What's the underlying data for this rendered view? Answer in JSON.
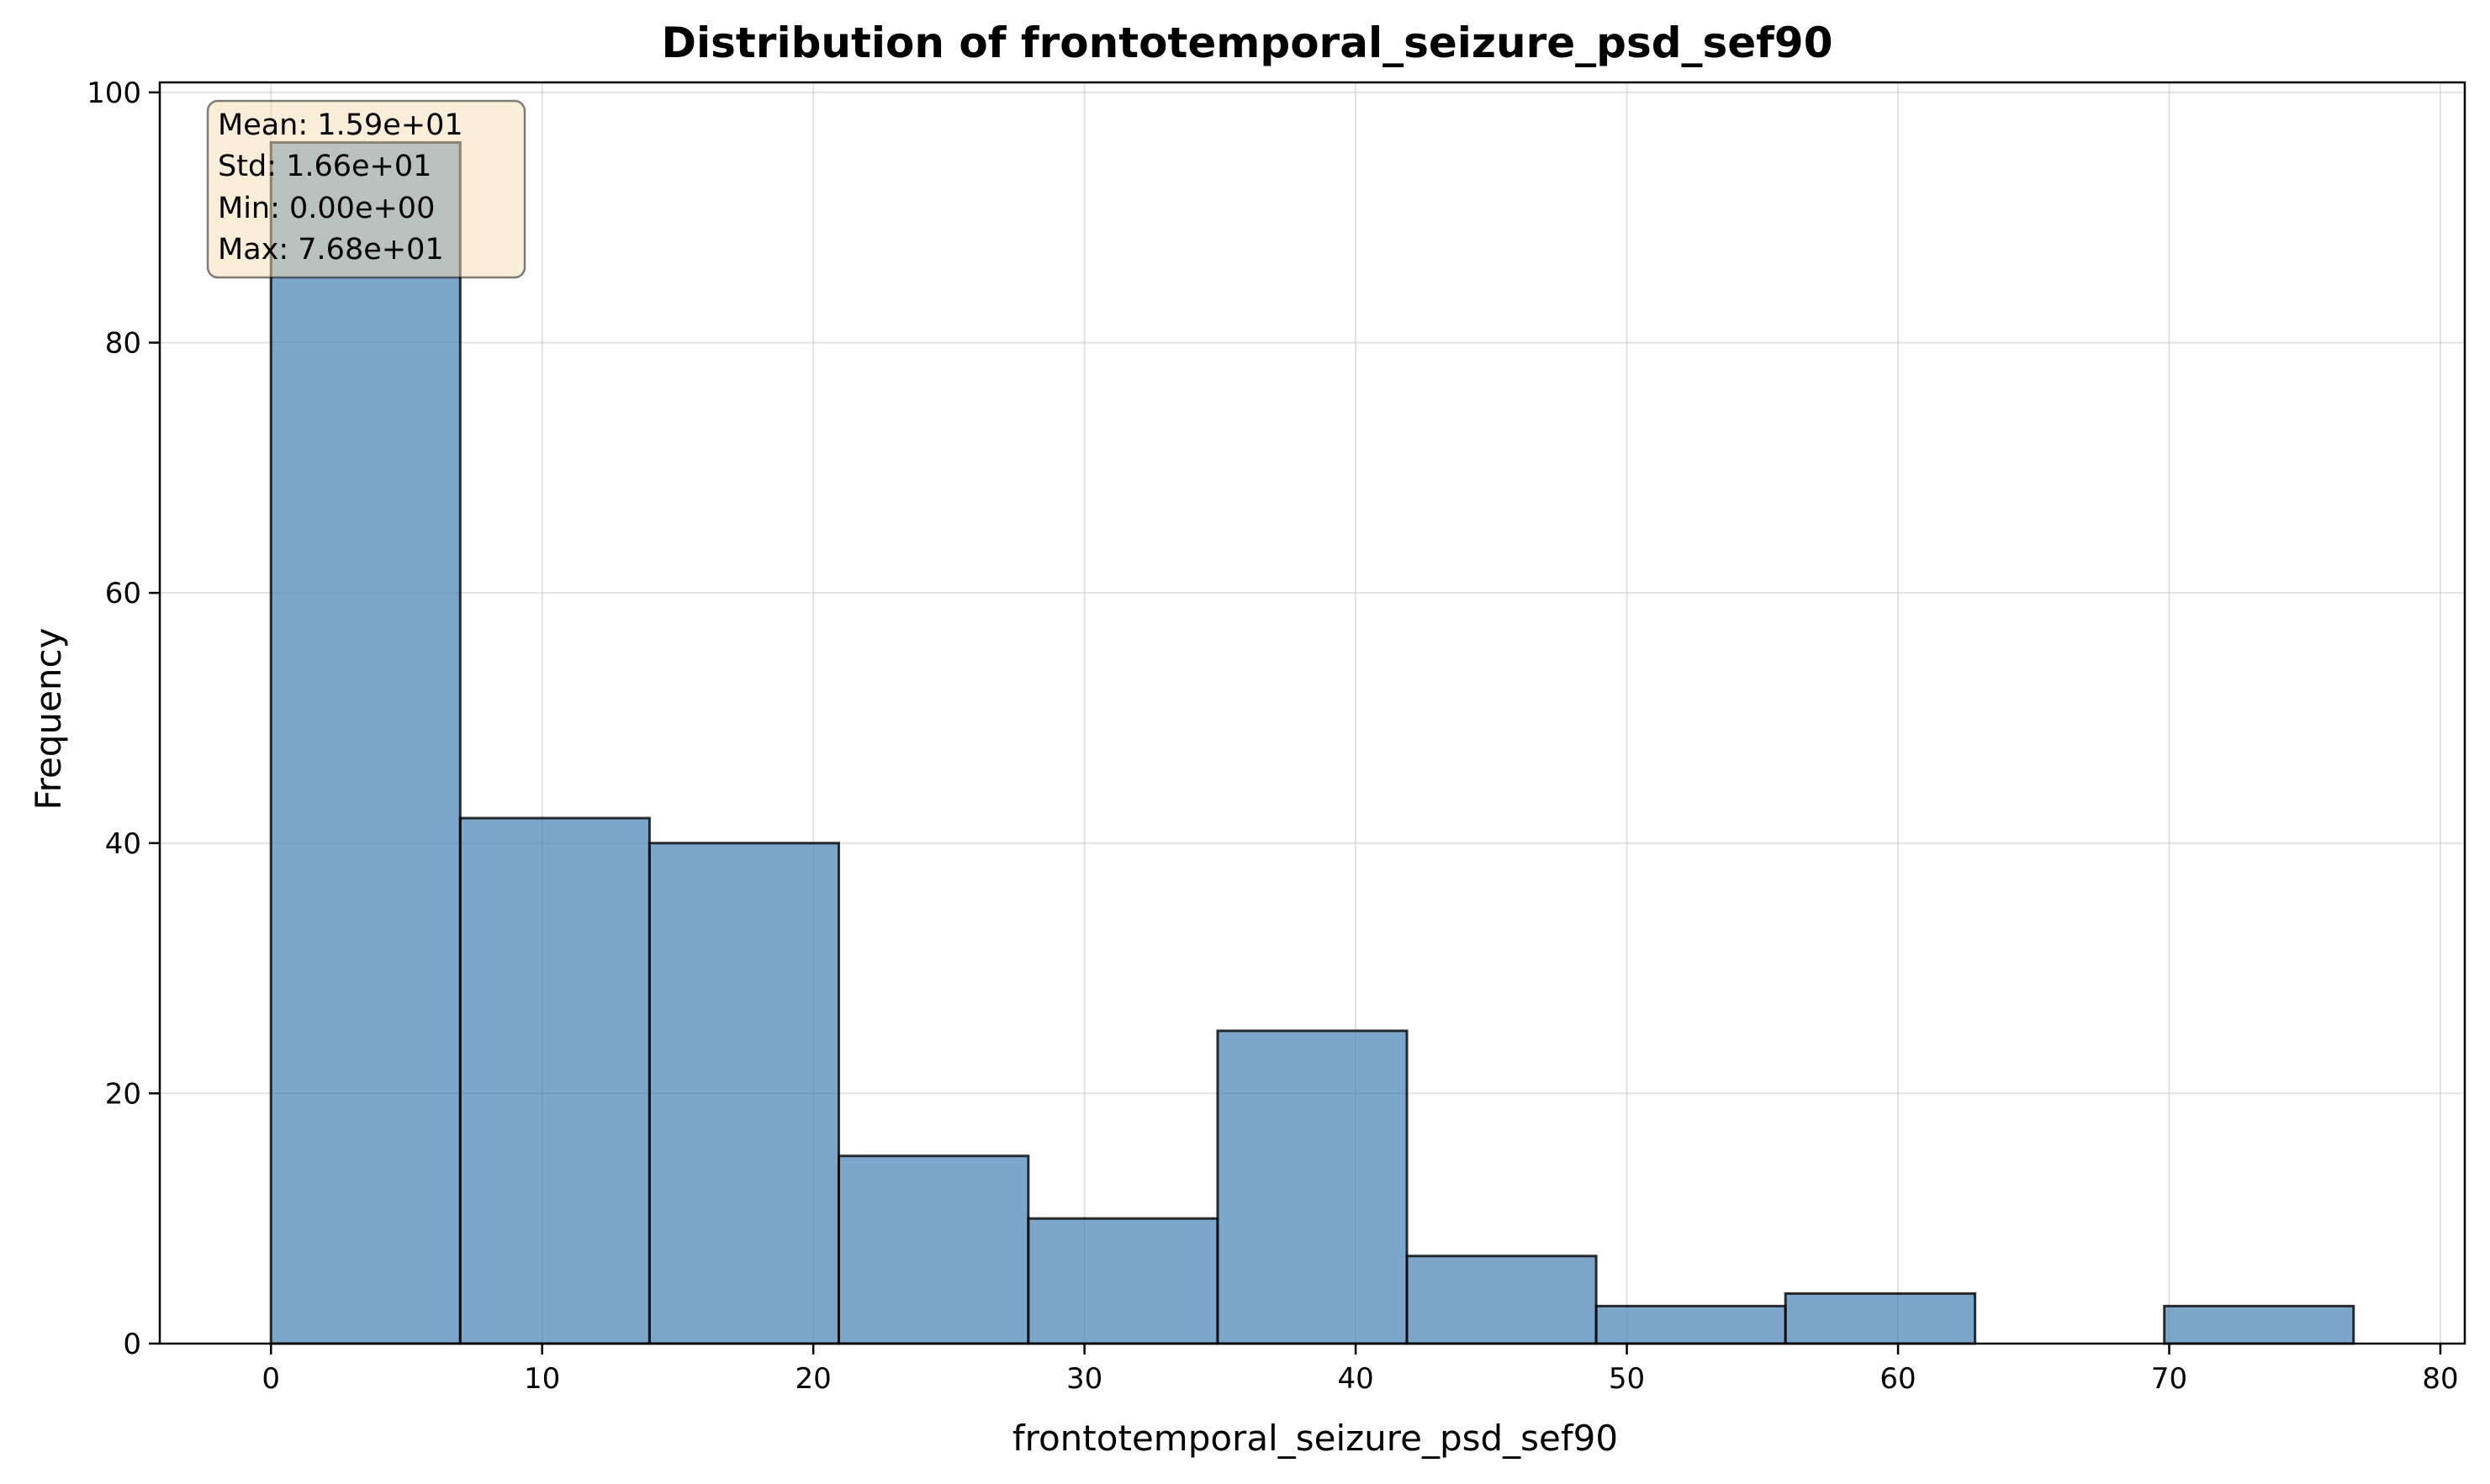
{
  "chart_data": {
    "type": "bar",
    "title": "Distribution of frontotemporal_seizure_psd_sef90",
    "xlabel": "frontotemporal_seizure_psd_sef90",
    "ylabel": "Frequency",
    "bins": [
      {
        "start": 0.0,
        "end": 6.98,
        "count": 96
      },
      {
        "start": 6.98,
        "end": 13.96,
        "count": 42
      },
      {
        "start": 13.96,
        "end": 20.94,
        "count": 40
      },
      {
        "start": 20.94,
        "end": 27.93,
        "count": 15
      },
      {
        "start": 27.93,
        "end": 34.91,
        "count": 10
      },
      {
        "start": 34.91,
        "end": 41.89,
        "count": 25
      },
      {
        "start": 41.89,
        "end": 48.87,
        "count": 7
      },
      {
        "start": 48.87,
        "end": 55.85,
        "count": 3
      },
      {
        "start": 55.85,
        "end": 62.84,
        "count": 4
      },
      {
        "start": 62.84,
        "end": 69.82,
        "count": 0
      },
      {
        "start": 69.82,
        "end": 76.8,
        "count": 3
      }
    ],
    "xlim": [
      -4.1,
      80.9
    ],
    "ylim": [
      0,
      100.8
    ],
    "xticks": [
      0,
      10,
      20,
      30,
      40,
      50,
      60,
      70,
      80
    ],
    "yticks": [
      0,
      20,
      40,
      60,
      80,
      100
    ],
    "grid": true,
    "bar_color": "#4682b4",
    "bar_edge_color": "#000000",
    "stats_box": {
      "lines": [
        "Mean: 1.59e+01",
        "Std: 1.66e+01",
        "Min: 0.00e+00",
        "Max: 7.68e+01"
      ],
      "placement": "top-left",
      "color": "#f5deb3"
    }
  }
}
